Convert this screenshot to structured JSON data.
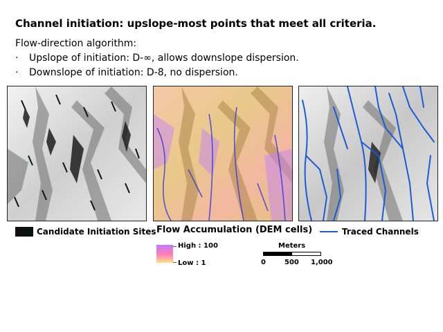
{
  "title": "Channel initiation: upslope-most points that meet all criteria.",
  "subtitle": "Flow-direction algorithm:",
  "bullets": [
    "Upslope of initiation: D-∞, allows downslope dispersion.",
    "Downslope of initiation: D-8, no dispersion."
  ],
  "bullet_symbol": "·",
  "legend": {
    "candidate_label": "Candidate Initiation Sites",
    "flow_title": "Flow Accumulation (DEM cells)",
    "high_label": "High : 100",
    "low_label": "Low : 1",
    "traced_label": "Traced Channels"
  },
  "scale": {
    "title": "Meters",
    "labels": [
      "0",
      "500",
      "1,000"
    ]
  },
  "colors": {
    "channel_blue": "#1a5bd6",
    "ramp_high": "#c07dff",
    "ramp_mid": "#ff7ab8",
    "ramp_low": "#ffe08a"
  }
}
